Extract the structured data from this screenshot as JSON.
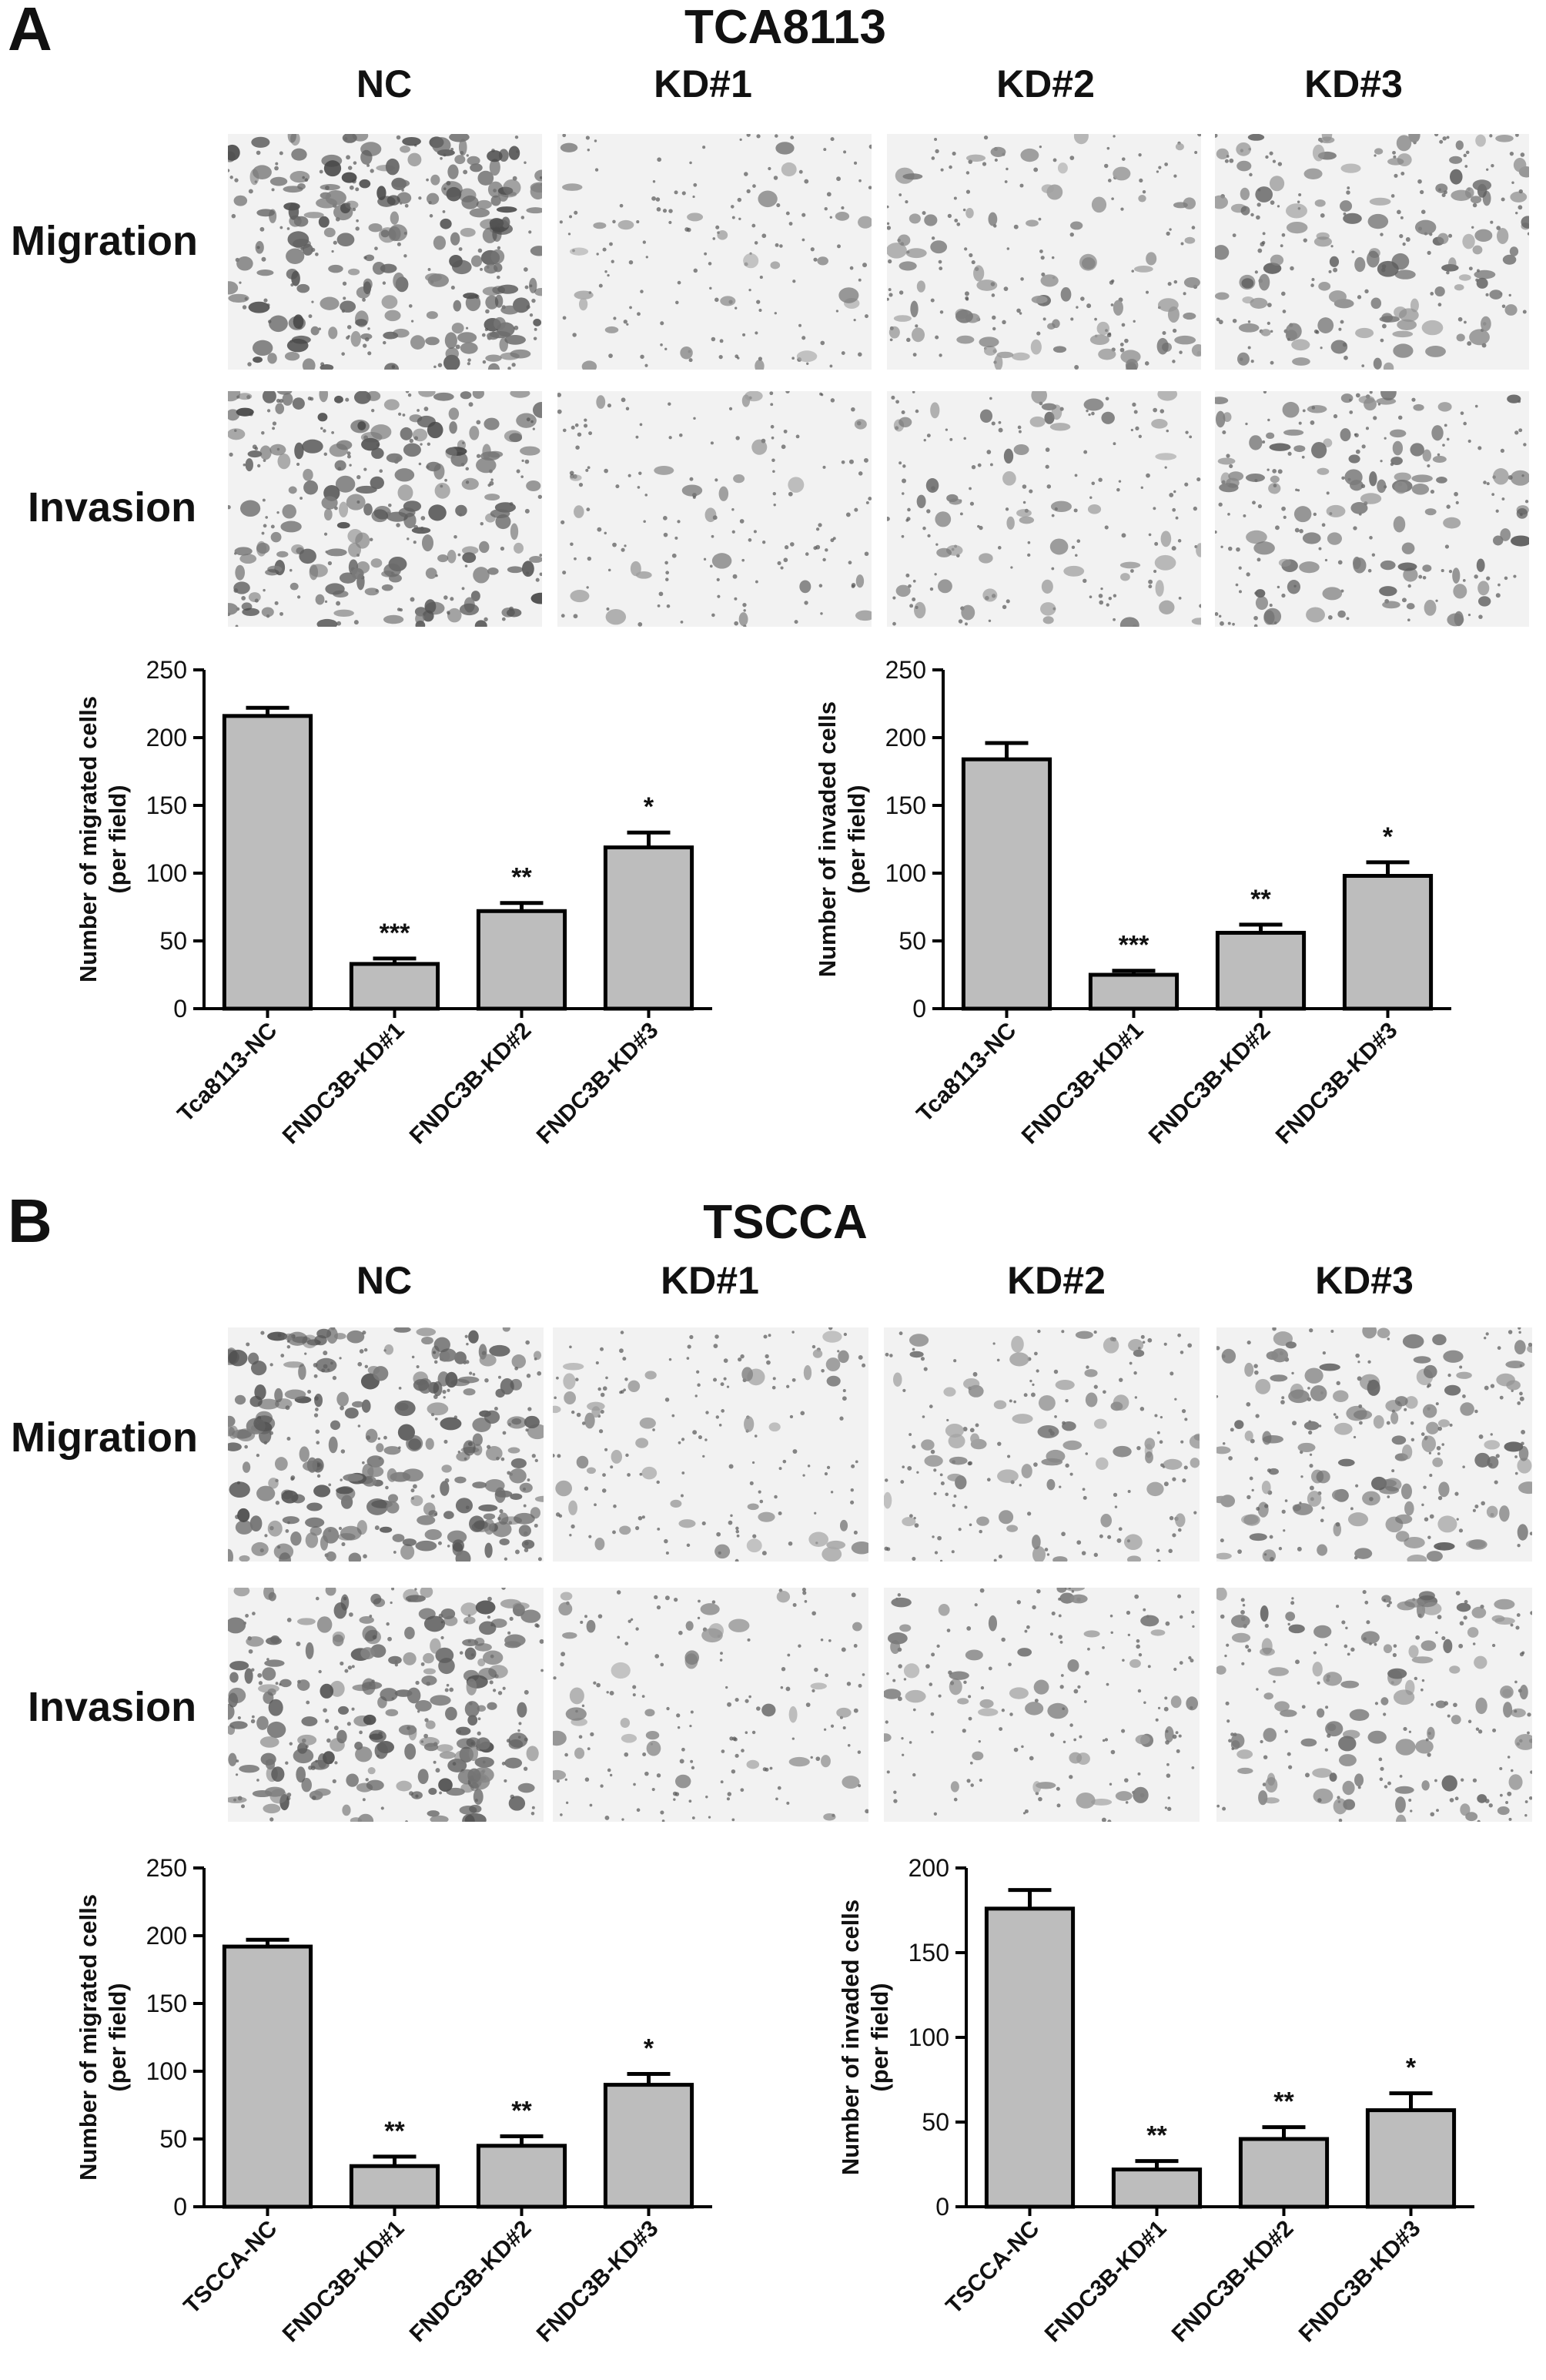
{
  "panels": [
    {
      "letter": "A",
      "title": "TCA8113",
      "columns": [
        "NC",
        "KD#1",
        "KD#2",
        "KD#3"
      ],
      "rows": [
        "Migration",
        "Invasion"
      ]
    },
    {
      "letter": "B",
      "title": "TSCCA",
      "columns": [
        "NC",
        "KD#1",
        "KD#2",
        "KD#3"
      ],
      "rows": [
        "Migration",
        "Invasion"
      ]
    }
  ],
  "chart_data": [
    {
      "type": "bar",
      "ylabel": "Number of migrated cells (per field)",
      "ylabel_lines": [
        "Number of migrated cells",
        "(per field)"
      ],
      "categories": [
        "Tca8113-NC",
        "FNDC3B-KD#1",
        "FNDC3B-KD#2",
        "FNDC3B-KD#3"
      ],
      "values": [
        216,
        33,
        72,
        119
      ],
      "errors": [
        6,
        4,
        6,
        11
      ],
      "significance": [
        "",
        "***",
        "**",
        "*"
      ],
      "ylim": [
        0,
        250
      ],
      "yticks": [
        0,
        50,
        100,
        150,
        200,
        250
      ]
    },
    {
      "type": "bar",
      "ylabel": "Number of invaded cells (per field)",
      "ylabel_lines": [
        "Number of invaded cells",
        "(per field)"
      ],
      "categories": [
        "Tca8113-NC",
        "FNDC3B-KD#1",
        "FNDC3B-KD#2",
        "FNDC3B-KD#3"
      ],
      "values": [
        184,
        25,
        56,
        98
      ],
      "errors": [
        12,
        3,
        6,
        10
      ],
      "significance": [
        "",
        "***",
        "**",
        "*"
      ],
      "ylim": [
        0,
        250
      ],
      "yticks": [
        0,
        50,
        100,
        150,
        200,
        250
      ]
    },
    {
      "type": "bar",
      "ylabel": "Number of migrated cells (per field)",
      "ylabel_lines": [
        "Number of migrated cells",
        "(per field)"
      ],
      "categories": [
        "TSCCA-NC",
        "FNDC3B-KD#1",
        "FNDC3B-KD#2",
        "FNDC3B-KD#3"
      ],
      "values": [
        192,
        30,
        45,
        90
      ],
      "errors": [
        5,
        7,
        7,
        8
      ],
      "significance": [
        "",
        "**",
        "**",
        "*"
      ],
      "ylim": [
        0,
        250
      ],
      "yticks": [
        0,
        50,
        100,
        150,
        200,
        250
      ]
    },
    {
      "type": "bar",
      "ylabel": "Number of invaded cells (per field)",
      "ylabel_lines": [
        "Number of invaded cells",
        "(per field)"
      ],
      "categories": [
        "TSCCA-NC",
        "FNDC3B-KD#1",
        "FNDC3B-KD#2",
        "FNDC3B-KD#3"
      ],
      "values": [
        176,
        22,
        40,
        57
      ],
      "errors": [
        11,
        5,
        7,
        10
      ],
      "significance": [
        "",
        "**",
        "**",
        "*"
      ],
      "ylim": [
        0,
        200
      ],
      "yticks": [
        0,
        50,
        100,
        150,
        200
      ]
    }
  ]
}
